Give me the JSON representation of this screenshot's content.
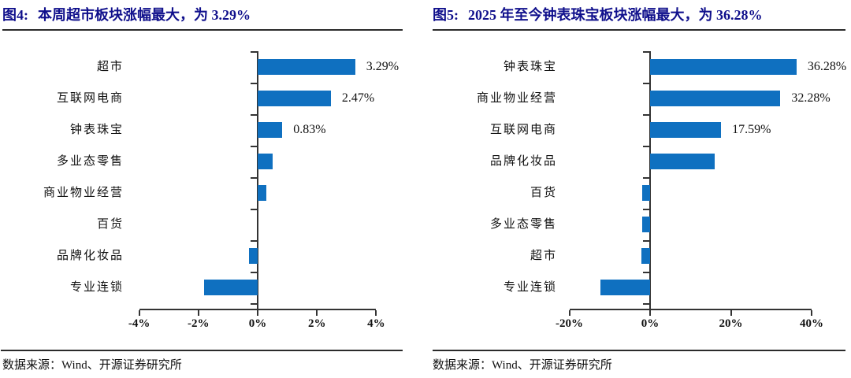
{
  "panels": [
    {
      "title_prefix": "图4:",
      "title_text": "本周超市板块涨幅最大，为 3.29%",
      "source_note": "数据来源：Wind、开源证券研究所"
    },
    {
      "title_prefix": "图5:",
      "title_text": "2025 年至今钟表珠宝板块涨幅最大，为 36.28%",
      "source_note": "数据来源：Wind、开源证券研究所"
    }
  ],
  "colors": {
    "bar_blue": "#0F70C0",
    "title_navy": "#10108C",
    "axis": "#333333",
    "rule": "#2b2b2b"
  },
  "chart_data": [
    {
      "type": "bar",
      "orientation": "horizontal",
      "title": "图4: 本周超市板块涨幅最大，为 3.29%",
      "categories": [
        "超市",
        "互联网电商",
        "钟表珠宝",
        "多业态零售",
        "商业物业经营",
        "百货",
        "品牌化妆品",
        "专业连锁"
      ],
      "values": [
        3.29,
        2.47,
        0.83,
        0.5,
        0.3,
        0.0,
        -0.3,
        -1.8
      ],
      "data_labels": [
        "3.29%",
        "2.47%",
        "0.83%",
        "",
        "",
        "",
        "",
        ""
      ],
      "x_tick_labels": [
        "-4%",
        "-2%",
        "0%",
        "2%",
        "4%"
      ],
      "x_tick_values": [
        -4,
        -2,
        0,
        2,
        4
      ],
      "xlim": [
        -4,
        4
      ],
      "unit": "percent",
      "bar_color": "#0F70C0",
      "grid": false,
      "legend": false
    },
    {
      "type": "bar",
      "orientation": "horizontal",
      "title": "图5: 2025 年至今钟表珠宝板块涨幅最大，为 36.28%",
      "categories": [
        "钟表珠宝",
        "商业物业经营",
        "互联网电商",
        "品牌化妆品",
        "百货",
        "多业态零售",
        "超市",
        "专业连锁"
      ],
      "values": [
        36.28,
        32.28,
        17.59,
        16.0,
        -1.9,
        -2.0,
        -2.2,
        -12.3
      ],
      "data_labels": [
        "36.28%",
        "32.28%",
        "17.59%",
        "",
        "",
        "",
        "",
        ""
      ],
      "x_tick_labels": [
        "-20%",
        "0%",
        "20%",
        "40%"
      ],
      "x_tick_values": [
        -20,
        0,
        20,
        40
      ],
      "xlim": [
        -20,
        40
      ],
      "unit": "percent",
      "bar_color": "#0F70C0",
      "grid": false,
      "legend": false
    }
  ]
}
